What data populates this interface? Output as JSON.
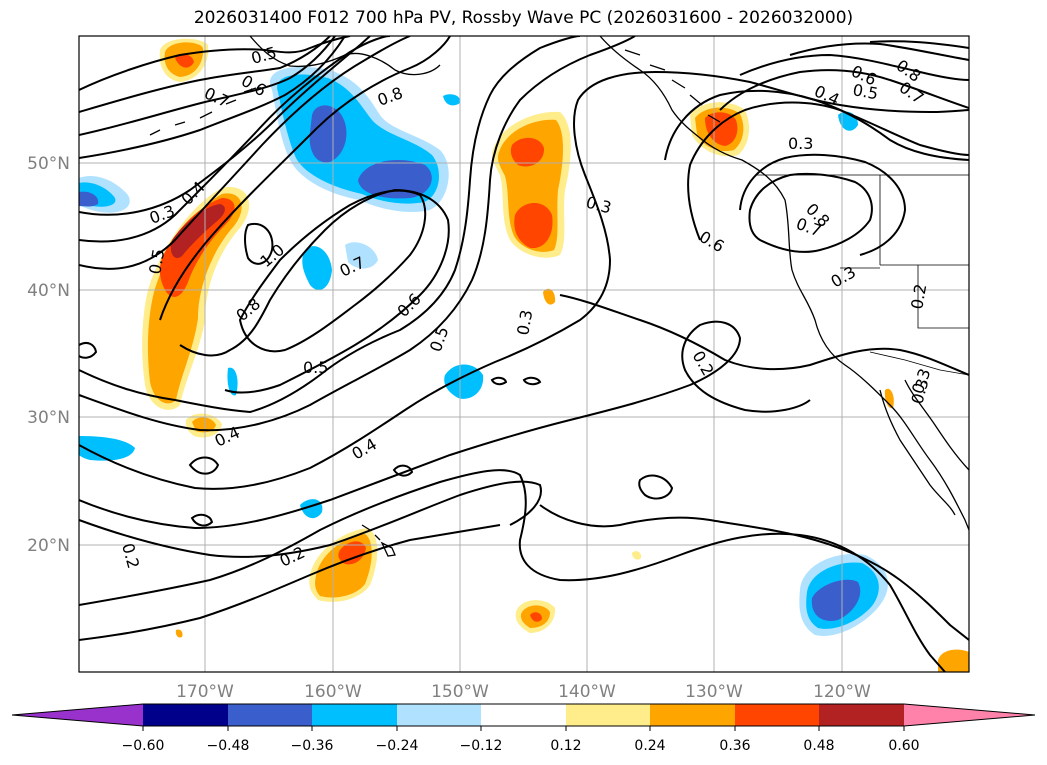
{
  "title": "2026031400 F012 700 hPa PV, Rossby Wave PC (2026031600 - 2026032000)",
  "latitude_labels": [
    "50°N",
    "40°N",
    "30°N",
    "20°N"
  ],
  "longitude_labels": [
    "170°W",
    "160°W",
    "150°W",
    "140°W",
    "130°W",
    "120°W"
  ],
  "contour_labels": [
    "0.5",
    "0.6",
    "0.7",
    "0.8",
    "0.3",
    "0.4",
    "0.5",
    "1.0",
    "0.7",
    "0.6",
    "0.8",
    "0.5",
    "0.5",
    "0.3",
    "0.3",
    "0.6",
    "0.4",
    "0.5",
    "0.6",
    "0.7",
    "0.8",
    "0.3",
    "0.7",
    "0.8",
    "0.3",
    "0.2",
    "0.2",
    "0.3",
    "0.3",
    "0.4",
    "0.4",
    "0.2",
    "0.2"
  ],
  "colorbar": {
    "ticks": [
      "−0.60",
      "−0.48",
      "−0.36",
      "−0.24",
      "−0.12",
      "0.12",
      "0.24",
      "0.36",
      "0.48",
      "0.60"
    ],
    "colors": [
      "#9932cc",
      "#00008b",
      "#3a5fcd",
      "#00bfff",
      "#b0e2ff",
      "#ffffff",
      "#ffec8b",
      "#ffa500",
      "#ff4500",
      "#b22222",
      "#ff82ab"
    ]
  },
  "anomaly_colors": {
    "neg_light": "#b0e2ff",
    "neg_mid": "#00bfff",
    "neg_strong": "#3a5fcd",
    "pos_light": "#ffec8b",
    "pos_mid": "#ffa500",
    "pos_strong": "#ff4500",
    "pos_max": "#b22222"
  }
}
